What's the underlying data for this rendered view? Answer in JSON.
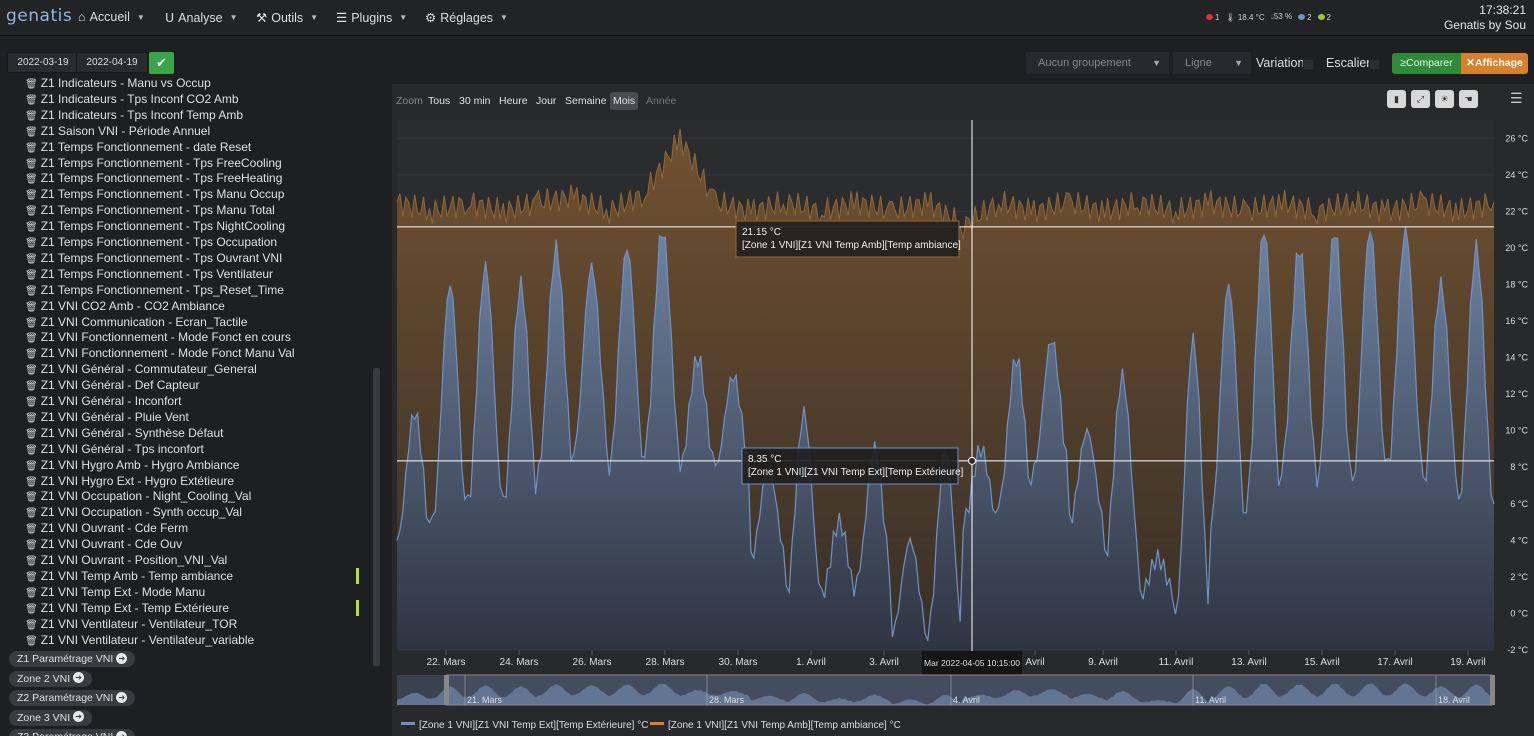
{
  "app": {
    "logo": "genatis",
    "clock_time": "17:38:21",
    "clock_site": "Genatis by Sou"
  },
  "nav": [
    {
      "label": "Accueil",
      "icon": "home-icon"
    },
    {
      "label": "Analyse",
      "icon": "analysis-icon"
    },
    {
      "label": "Outils",
      "icon": "wrench-icon"
    },
    {
      "label": "Plugins",
      "icon": "list-icon"
    },
    {
      "label": "Réglages",
      "icon": "gear-icon"
    }
  ],
  "status": {
    "alerts": "1",
    "temp": "18.4 °C",
    "humidity": "53 %",
    "cloud": "2",
    "leaf": "2"
  },
  "toolbar": {
    "date_from": "2022-03-19",
    "date_to": "2022-04-19",
    "grouping": "Aucun groupement",
    "type": "Ligne",
    "variation": "Variation",
    "escalier": "Escalier",
    "compare": "Comparer",
    "display": "Affichage"
  },
  "sidebar": {
    "items": [
      "Z1 Indicateurs - Manu vs Occup",
      "Z1 Indicateurs - Tps Inconf CO2 Amb",
      "Z1 Indicateurs - Tps Inconf Temp Amb",
      "Z1 Saison VNI - Période Annuel",
      "Z1 Temps Fonctionnement - date Reset",
      "Z1 Temps Fonctionnement - Tps FreeCooling",
      "Z1 Temps Fonctionnement - Tps FreeHeating",
      "Z1 Temps Fonctionnement - Tps Manu Occup",
      "Z1 Temps Fonctionnement - Tps Manu Total",
      "Z1 Temps Fonctionnement - Tps NightCooling",
      "Z1 Temps Fonctionnement - Tps Occupation",
      "Z1 Temps Fonctionnement - Tps Ouvrant VNI",
      "Z1 Temps Fonctionnement - Tps Ventilateur",
      "Z1 Temps Fonctionnement - Tps_Reset_Time",
      "Z1 VNI CO2 Amb - CO2 Ambiance",
      "Z1 VNI Communication - Ecran_Tactile",
      "Z1 VNI Fonctionnement - Mode Fonct en cours",
      "Z1 VNI Fonctionnement - Mode Fonct Manu Val",
      "Z1 VNI Général - Commutateur_General",
      "Z1 VNI Général - Def Capteur",
      "Z1 VNI Général - Inconfort",
      "Z1 VNI Général - Pluie Vent",
      "Z1 VNI Général - Synthèse Défaut",
      "Z1 VNI Général - Tps inconfort",
      "Z1 VNI Hygro Amb - Hygro Ambiance",
      "Z1 VNI Hygro Ext - Hygro Extétieure",
      "Z1 VNI Occupation - Night_Cooling_Val",
      "Z1 VNI Occupation - Synth occup_Val",
      "Z1 VNI Ouvrant - Cde Ferm",
      "Z1 VNI Ouvrant - Cde Ouv",
      "Z1 VNI Ouvrant - Position_VNI_Val",
      "Z1 VNI Temp Amb - Temp ambiance",
      "Z1 VNI Temp Ext - Mode Manu",
      "Z1 VNI Temp Ext - Temp Extérieure",
      "Z1 VNI Ventilateur - Ventilateur_TOR",
      "Z1 VNI Ventilateur - Ventilateur_variable"
    ],
    "groups": [
      "Z1 Paramétrage VNI",
      "Zone 2 VNI",
      "Z2 Paramétrage VNI",
      "Zone 3 VNI",
      "Z3 Paramétrage VNI"
    ]
  },
  "zoom": {
    "label": "Zoom",
    "buttons": [
      "Tous",
      "30 min",
      "Heure",
      "Jour",
      "Semaine",
      "Mois",
      "Année"
    ],
    "active": "Mois"
  },
  "chart_data": {
    "type": "area",
    "ylim": [
      -2,
      27
    ],
    "y_ticks": [
      "26 °C",
      "24 °C",
      "22 °C",
      "20 °C",
      "18 °C",
      "16 °C",
      "14 °C",
      "12 °C",
      "10 °C",
      "8 °C",
      "6 °C",
      "4 °C",
      "2 °C",
      "0 °C",
      "-2 °C"
    ],
    "x_ticks": [
      "22. Mars",
      "24. Mars",
      "26. Mars",
      "28. Mars",
      "30. Mars",
      "1. Avril",
      "3. Avril",
      "Avril",
      "9. Avril",
      "11. Avril",
      "13. Avril",
      "15. Avril",
      "17. Avril",
      "19. Avril"
    ],
    "crosshair_label": "Mar 2022-04-05 10:15:00",
    "navigator_ticks": [
      "21. Mars",
      "28. Mars",
      "4. Avril",
      "11. Avril",
      "18. Avril"
    ],
    "tooltips": [
      {
        "value": "21.15 °C",
        "series": "[Zone 1 VNI][Z1 VNI Temp Amb][Temp ambiance]"
      },
      {
        "value": "8.35 °C",
        "series": "[Zone 1 VNI][Z1 VNI Temp Ext][Temp Extérieure]"
      }
    ],
    "legend": [
      "[Zone 1 VNI][Z1 VNI Temp Ext][Temp Extérieure] °C",
      "[Zone 1 VNI][Z1 VNI Temp Amb][Temp ambiance] °C"
    ],
    "colors": {
      "ext": "#6f91c4",
      "amb": "#8f6838"
    },
    "series": [
      {
        "name": "[Zone 1 VNI][Z1 VNI Temp Ext][Temp Extérieure]",
        "x": [
          "2022-03-20",
          "2022-03-21",
          "2022-03-22",
          "2022-03-23",
          "2022-03-24",
          "2022-03-25",
          "2022-03-26",
          "2022-03-27",
          "2022-03-28",
          "2022-03-29",
          "2022-03-30",
          "2022-03-31",
          "2022-04-01",
          "2022-04-02",
          "2022-04-03",
          "2022-04-04",
          "2022-04-05",
          "2022-04-06",
          "2022-04-07",
          "2022-04-08",
          "2022-04-09",
          "2022-04-10",
          "2022-04-11",
          "2022-04-12",
          "2022-04-13",
          "2022-04-14",
          "2022-04-15",
          "2022-04-16",
          "2022-04-17",
          "2022-04-18",
          "2022-04-19",
          "2022-04-20"
        ],
        "max": [
          11,
          18,
          19,
          18,
          20,
          19,
          20,
          21,
          14,
          13,
          8,
          11,
          5,
          9,
          4,
          9,
          9,
          14,
          15,
          10,
          13,
          3,
          15,
          18,
          21,
          20,
          21,
          21,
          21,
          18,
          20,
          18
        ],
        "min": [
          4,
          5,
          6,
          6,
          8,
          9,
          8,
          9,
          8,
          8,
          3,
          1,
          1,
          2,
          -1,
          -1,
          5,
          6,
          8,
          5,
          3,
          1,
          0,
          5,
          6,
          8,
          7,
          7,
          8,
          7,
          6,
          6
        ]
      },
      {
        "name": "[Zone 1 VNI][Z1 VNI Temp Amb][Temp ambiance]",
        "x": [
          "2022-03-20",
          "2022-03-21",
          "2022-03-22",
          "2022-03-23",
          "2022-03-24",
          "2022-03-25",
          "2022-03-26",
          "2022-03-27",
          "2022-03-28",
          "2022-03-29",
          "2022-03-30",
          "2022-03-31",
          "2022-04-01",
          "2022-04-02",
          "2022-04-03",
          "2022-04-04",
          "2022-04-05",
          "2022-04-06",
          "2022-04-07",
          "2022-04-08",
          "2022-04-09",
          "2022-04-10",
          "2022-04-11",
          "2022-04-12",
          "2022-04-13",
          "2022-04-14",
          "2022-04-15",
          "2022-04-16",
          "2022-04-17",
          "2022-04-18",
          "2022-04-19",
          "2022-04-20"
        ],
        "values": [
          22.5,
          22.0,
          22.5,
          22.0,
          22.5,
          22.8,
          22.0,
          23.0,
          26.0,
          22.5,
          22.0,
          22.5,
          22.0,
          22.5,
          22.0,
          22.5,
          21.2,
          22.5,
          22.0,
          22.5,
          22.0,
          22.5,
          22.0,
          22.5,
          22.0,
          22.5,
          22.0,
          22.5,
          22.0,
          22.5,
          22.0,
          22.5
        ]
      }
    ]
  }
}
